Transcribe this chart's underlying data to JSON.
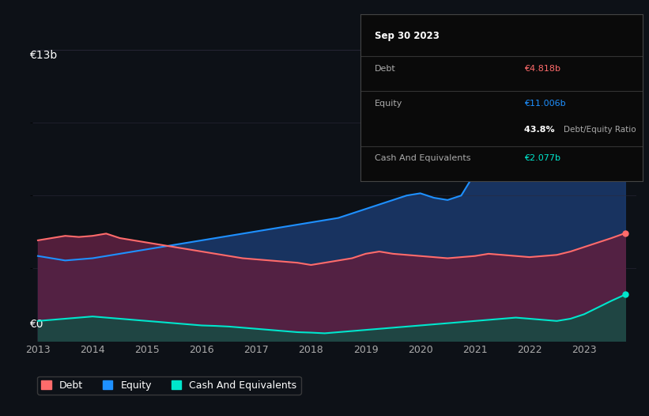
{
  "bg_color": "#0d1117",
  "plot_bg_color": "#0d1117",
  "ylabel_top": "€13b",
  "ylabel_bottom": "€0",
  "x_years": [
    2013.0,
    2013.25,
    2013.5,
    2013.75,
    2014.0,
    2014.25,
    2014.5,
    2014.75,
    2015.0,
    2015.25,
    2015.5,
    2015.75,
    2016.0,
    2016.25,
    2016.5,
    2016.75,
    2017.0,
    2017.25,
    2017.5,
    2017.75,
    2018.0,
    2018.25,
    2018.5,
    2018.75,
    2019.0,
    2019.25,
    2019.5,
    2019.75,
    2020.0,
    2020.25,
    2020.5,
    2020.75,
    2021.0,
    2021.25,
    2021.5,
    2021.75,
    2022.0,
    2022.25,
    2022.5,
    2022.75,
    2023.0,
    2023.25,
    2023.5,
    2023.75
  ],
  "equity": [
    3.8,
    3.7,
    3.6,
    3.65,
    3.7,
    3.8,
    3.9,
    4.0,
    4.1,
    4.2,
    4.3,
    4.4,
    4.5,
    4.6,
    4.7,
    4.8,
    4.9,
    5.0,
    5.1,
    5.2,
    5.3,
    5.4,
    5.5,
    5.7,
    5.9,
    6.1,
    6.3,
    6.5,
    6.6,
    6.4,
    6.3,
    6.5,
    7.5,
    8.5,
    9.5,
    10.2,
    10.8,
    11.2,
    11.5,
    12.5,
    12.8,
    12.0,
    11.5,
    11.006
  ],
  "debt": [
    4.5,
    4.6,
    4.7,
    4.65,
    4.7,
    4.8,
    4.6,
    4.5,
    4.4,
    4.3,
    4.2,
    4.1,
    4.0,
    3.9,
    3.8,
    3.7,
    3.65,
    3.6,
    3.55,
    3.5,
    3.4,
    3.5,
    3.6,
    3.7,
    3.9,
    4.0,
    3.9,
    3.85,
    3.8,
    3.75,
    3.7,
    3.75,
    3.8,
    3.9,
    3.85,
    3.8,
    3.75,
    3.8,
    3.85,
    4.0,
    4.2,
    4.4,
    4.6,
    4.818
  ],
  "cash": [
    0.9,
    0.95,
    1.0,
    1.05,
    1.1,
    1.05,
    1.0,
    0.95,
    0.9,
    0.85,
    0.8,
    0.75,
    0.7,
    0.68,
    0.65,
    0.6,
    0.55,
    0.5,
    0.45,
    0.4,
    0.38,
    0.35,
    0.4,
    0.45,
    0.5,
    0.55,
    0.6,
    0.65,
    0.7,
    0.75,
    0.8,
    0.85,
    0.9,
    0.95,
    1.0,
    1.05,
    1.0,
    0.95,
    0.9,
    1.0,
    1.2,
    1.5,
    1.8,
    2.077
  ],
  "equity_color": "#1e90ff",
  "equity_fill": "#1a3a6e",
  "debt_color": "#ff6b6b",
  "debt_fill": "#5a2040",
  "cash_color": "#00e5cc",
  "cash_fill": "#1a4a44",
  "grid_color": "#2a2a3a",
  "tick_color": "#aaaaaa",
  "ymax": 13.0,
  "ymin": 0.0,
  "tooltip": {
    "date": "Sep 30 2023",
    "debt_label": "Debt",
    "debt_value": "€4.818b",
    "equity_label": "Equity",
    "equity_value": "€11.006b",
    "ratio_value": "43.8%",
    "ratio_label": "Debt/Equity Ratio",
    "cash_label": "Cash And Equivalents",
    "cash_value": "€2.077b"
  },
  "legend_items": [
    {
      "label": "Debt",
      "color": "#ff6b6b"
    },
    {
      "label": "Equity",
      "color": "#1e90ff"
    },
    {
      "label": "Cash And Equivalents",
      "color": "#00e5cc"
    }
  ]
}
